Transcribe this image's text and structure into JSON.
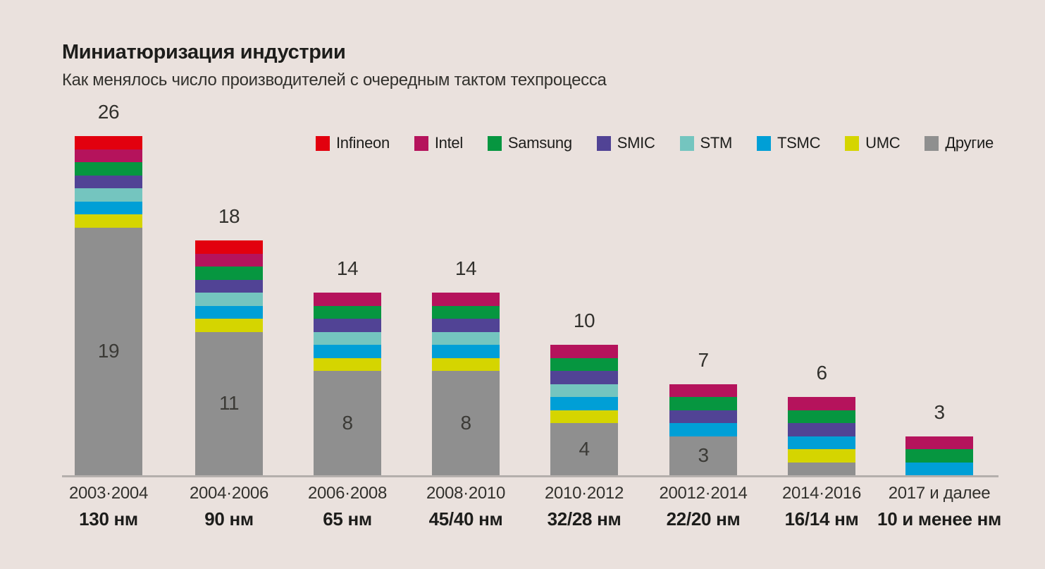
{
  "title": "Миниатюризация индустрии",
  "subtitle": "Как менялось число производителей с очередным тактом техпроцесса",
  "colors": {
    "background": "#EAE1DD",
    "axis_line": "#B4AFAC",
    "text": "#32312D"
  },
  "chart_data": {
    "type": "bar",
    "stacked": true,
    "title": "Миниатюризация индустрии",
    "subtitle": "Как менялось число производителей с очередным тактом техпроцесса",
    "legend_position": "top",
    "grid": false,
    "ylim": [
      0,
      26
    ],
    "legend": [
      {
        "name": "Infineon",
        "color": "#E2000E"
      },
      {
        "name": "Intel",
        "color": "#B5135C"
      },
      {
        "name": "Samsung",
        "color": "#069640"
      },
      {
        "name": "SMIC",
        "color": "#514395"
      },
      {
        "name": "STM",
        "color": "#74C5BF"
      },
      {
        "name": "TSMC",
        "color": "#009FD6"
      },
      {
        "name": "UMC",
        "color": "#D5D500"
      },
      {
        "name": "Другие",
        "color": "#8F8F8F"
      }
    ],
    "categories": [
      {
        "period": "2003·2004",
        "node": "130 нм"
      },
      {
        "period": "2004·2006",
        "node": "90 нм"
      },
      {
        "period": "2006·2008",
        "node": "65 нм"
      },
      {
        "period": "2008·2010",
        "node": "45/40 нм"
      },
      {
        "period": "2010·2012",
        "node": "32/28 нм"
      },
      {
        "period": "20012·2014",
        "node": "22/20 нм"
      },
      {
        "period": "2014·2016",
        "node": "16/14 нм"
      },
      {
        "period": "2017 и далее",
        "node": "10 и менее нм"
      }
    ],
    "series": [
      {
        "name": "Infineon",
        "values": [
          1,
          1,
          0,
          0,
          0,
          0,
          0,
          0
        ]
      },
      {
        "name": "Intel",
        "values": [
          1,
          1,
          1,
          1,
          1,
          1,
          1,
          1
        ]
      },
      {
        "name": "Samsung",
        "values": [
          1,
          1,
          1,
          1,
          1,
          1,
          1,
          1
        ]
      },
      {
        "name": "SMIC",
        "values": [
          1,
          1,
          1,
          1,
          1,
          1,
          1,
          0
        ]
      },
      {
        "name": "STM",
        "values": [
          1,
          1,
          1,
          1,
          1,
          0,
          0,
          0
        ]
      },
      {
        "name": "TSMC",
        "values": [
          1,
          1,
          1,
          1,
          1,
          1,
          1,
          1
        ]
      },
      {
        "name": "UMC",
        "values": [
          1,
          1,
          1,
          1,
          1,
          0,
          1,
          0
        ]
      },
      {
        "name": "Другие",
        "values": [
          19,
          11,
          8,
          8,
          4,
          3,
          1,
          0
        ]
      }
    ],
    "totals": [
      26,
      18,
      14,
      14,
      10,
      7,
      6,
      3
    ],
    "inside_labels": [
      "19",
      "11",
      "8",
      "8",
      "4",
      "3",
      "",
      ""
    ]
  }
}
